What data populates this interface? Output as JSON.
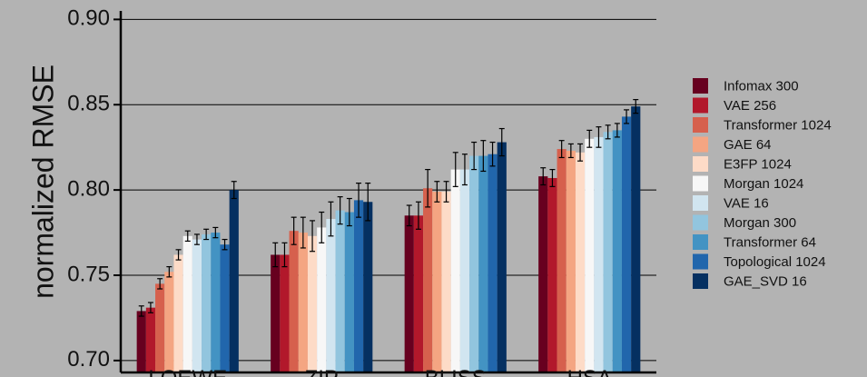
{
  "chart_data": {
    "type": "bar",
    "title": "",
    "xlabel": "",
    "ylabel": "normalized RMSE",
    "ylim": [
      0.693,
      0.905
    ],
    "yticks": [
      0.7,
      0.75,
      0.8,
      0.85,
      0.9
    ],
    "ytick_labels": [
      "0.70",
      "0.75",
      "0.80",
      "0.85",
      "0.90"
    ],
    "grid": true,
    "legend_position": "right",
    "categories": [
      "LOEWE",
      "ZIP",
      "BLISS",
      "HSA"
    ],
    "series": [
      {
        "name": "Infomax 300",
        "color": "#67001f",
        "values": [
          0.729,
          0.762,
          0.785,
          0.808
        ],
        "errors": [
          0.003,
          0.007,
          0.006,
          0.005
        ]
      },
      {
        "name": "VAE 256",
        "color": "#b2182b",
        "values": [
          0.731,
          0.762,
          0.785,
          0.807
        ],
        "errors": [
          0.003,
          0.007,
          0.008,
          0.005
        ]
      },
      {
        "name": "Transformer 1024",
        "color": "#d6604d",
        "values": [
          0.745,
          0.776,
          0.801,
          0.824
        ],
        "errors": [
          0.003,
          0.008,
          0.011,
          0.005
        ]
      },
      {
        "name": "GAE 64",
        "color": "#f4a582",
        "values": [
          0.752,
          0.775,
          0.799,
          0.823
        ],
        "errors": [
          0.003,
          0.009,
          0.006,
          0.004
        ]
      },
      {
        "name": "E3FP 1024",
        "color": "#fddbc7",
        "values": [
          0.762,
          0.773,
          0.799,
          0.822
        ],
        "errors": [
          0.003,
          0.009,
          0.006,
          0.005
        ]
      },
      {
        "name": "Morgan 1024",
        "color": "#f7f7f7",
        "values": [
          0.773,
          0.778,
          0.812,
          0.83
        ],
        "errors": [
          0.003,
          0.009,
          0.01,
          0.005
        ]
      },
      {
        "name": "VAE 16",
        "color": "#d1e5f0",
        "values": [
          0.771,
          0.783,
          0.812,
          0.831
        ],
        "errors": [
          0.003,
          0.01,
          0.009,
          0.006
        ]
      },
      {
        "name": "Morgan 300",
        "color": "#92c5de",
        "values": [
          0.774,
          0.788,
          0.82,
          0.834
        ],
        "errors": [
          0.003,
          0.008,
          0.008,
          0.004
        ]
      },
      {
        "name": "Transformer 64",
        "color": "#4393c3",
        "values": [
          0.775,
          0.787,
          0.82,
          0.835
        ],
        "errors": [
          0.003,
          0.008,
          0.009,
          0.004
        ]
      },
      {
        "name": "Topological 1024",
        "color": "#2166ac",
        "values": [
          0.768,
          0.794,
          0.821,
          0.843
        ],
        "errors": [
          0.003,
          0.01,
          0.007,
          0.004
        ]
      },
      {
        "name": "GAE_SVD 16",
        "color": "#053061",
        "values": [
          0.8,
          0.793,
          0.828,
          0.849
        ],
        "errors": [
          0.005,
          0.011,
          0.008,
          0.004
        ]
      }
    ]
  }
}
